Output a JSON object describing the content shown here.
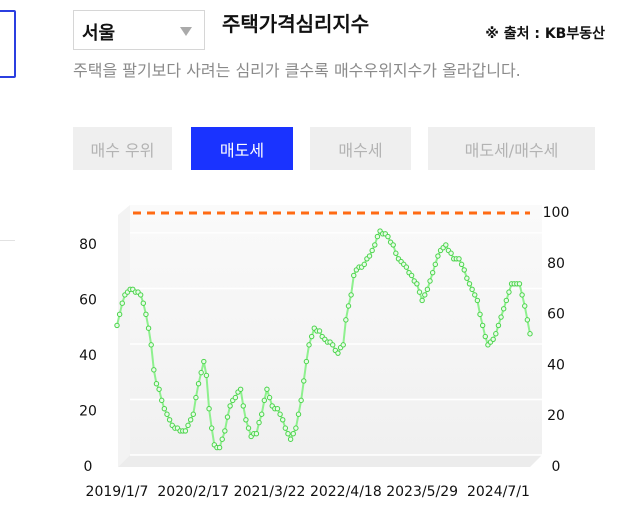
{
  "header": {
    "region": "서울",
    "title": "주택가격심리지수",
    "source": "※ 출처 : KB부동산",
    "description": "주택을 팔기보다 사려는 심리가 클수록 매수우위지수가 올라갑니다."
  },
  "tabs": [
    {
      "label": "매수 우위",
      "active": false
    },
    {
      "label": "매도세",
      "active": true
    },
    {
      "label": "매수세",
      "active": false
    },
    {
      "label": "매도세/매수세",
      "active": false
    }
  ],
  "chart_data": {
    "type": "line",
    "categories": [
      "2019/1/7",
      null,
      null,
      null,
      null,
      null,
      null,
      null,
      null,
      null,
      null,
      null,
      null,
      null,
      null,
      null,
      null,
      null,
      null,
      null,
      null,
      null,
      null,
      null,
      null,
      null,
      null,
      null,
      null,
      "2020/2/17",
      null,
      null,
      null,
      null,
      null,
      null,
      null,
      null,
      null,
      null,
      null,
      null,
      null,
      null,
      null,
      null,
      null,
      null,
      null,
      null,
      null,
      null,
      null,
      null,
      null,
      null,
      null,
      null,
      "2021/3/22",
      null,
      null,
      null,
      null,
      null,
      null,
      null,
      null,
      null,
      null,
      null,
      null,
      null,
      null,
      null,
      null,
      null,
      null,
      null,
      null,
      null,
      null,
      null,
      null,
      null,
      null,
      null,
      null,
      "2022/4/18",
      null,
      null,
      null,
      null,
      null,
      null,
      null,
      null,
      null,
      null,
      null,
      null,
      null,
      null,
      null,
      null,
      null,
      null,
      null,
      null,
      null,
      null,
      null,
      null,
      null,
      null,
      null,
      null,
      "2023/5/29",
      null,
      null,
      null,
      null,
      null,
      null,
      null,
      null,
      null,
      null,
      null,
      null,
      null,
      null,
      null,
      null,
      null,
      null,
      null,
      null,
      null,
      null,
      null,
      null,
      null,
      null,
      null,
      null,
      "2024/7/1",
      null,
      null,
      null,
      null,
      null,
      null,
      null,
      null,
      null,
      null,
      null,
      null
    ],
    "series": [
      {
        "color": "#4cd44c",
        "values": [
          51,
          55,
          59,
          62,
          63,
          64,
          64,
          63,
          63,
          62,
          59,
          55,
          50,
          44,
          35,
          30,
          28,
          24,
          21,
          19,
          17,
          15,
          14,
          14,
          13,
          13,
          13,
          15,
          17,
          19,
          25,
          30,
          34,
          38,
          33,
          21,
          14,
          8,
          7,
          7,
          10,
          13,
          18,
          22,
          24,
          25,
          27,
          28,
          22,
          17,
          14,
          11,
          12,
          12,
          16,
          19,
          24,
          28,
          25,
          22,
          21,
          21,
          19,
          17,
          14,
          12,
          10,
          12,
          14,
          19,
          24,
          31,
          38,
          44,
          47,
          50,
          49,
          49,
          47,
          46,
          45,
          45,
          44,
          42,
          41,
          43,
          44,
          53,
          58,
          62,
          69,
          71,
          72,
          72,
          73,
          75,
          76,
          78,
          80,
          83,
          85,
          84,
          84,
          83,
          81,
          80,
          77,
          75,
          74,
          73,
          72,
          70,
          69,
          67,
          66,
          63,
          60,
          62,
          64,
          67,
          70,
          73,
          76,
          78,
          79,
          80,
          78,
          77,
          75,
          75,
          75,
          73,
          71,
          68,
          66,
          64,
          62,
          60,
          55,
          51,
          47,
          44,
          45,
          46,
          48,
          51,
          54,
          57,
          60,
          63,
          66,
          66,
          66,
          66,
          62,
          58,
          53,
          48
        ]
      }
    ],
    "ylim": [
      0,
      91.5
    ],
    "yticks": [
      0,
      20,
      40,
      60,
      80
    ],
    "y2lim": [
      0,
      100
    ],
    "y2ticks": [
      0,
      20,
      40,
      60,
      80,
      100
    ],
    "reference_line": {
      "value": 100,
      "axis": "y2",
      "color": "#ff6a13"
    },
    "grid": true
  }
}
